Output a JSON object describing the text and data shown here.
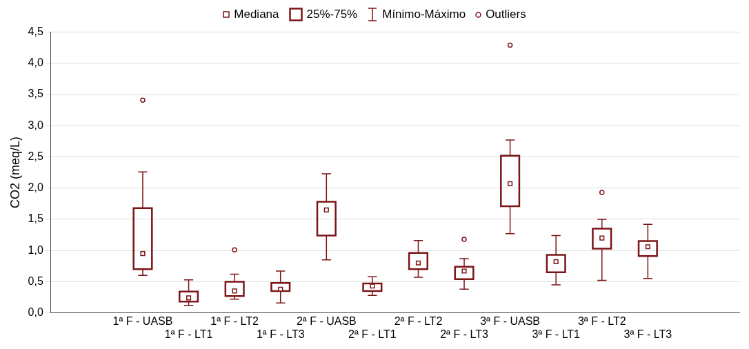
{
  "chart_data": {
    "type": "box",
    "ylabel": "CO2 (meq/L)",
    "color": "#7b1416",
    "grid": "y",
    "marker": "square",
    "annotations": [
      "Mediana",
      "25%-75%",
      "Mínimo-Máximo",
      "Outliers"
    ],
    "categories": [
      "1ª F - UASB",
      "1ª F - LT1",
      "1ª F - LT2",
      "1ª F - LT3",
      "2ª F - UASB",
      "2ª F - LT1",
      "2ª F - LT2",
      "2ª F - LT3",
      "3ª F - UASB",
      "3ª F - LT1",
      "3ª F - LT2",
      "3ª F - LT3"
    ],
    "boxes": [
      {
        "low": 0.6,
        "q1": 0.7,
        "median": 0.95,
        "q3": 1.68,
        "high": 2.26,
        "outliers": [
          3.41
        ]
      },
      {
        "low": 0.12,
        "q1": 0.18,
        "median": 0.24,
        "q3": 0.34,
        "high": 0.53
      },
      {
        "low": 0.22,
        "q1": 0.27,
        "median": 0.35,
        "q3": 0.5,
        "high": 0.62,
        "outliers": [
          1.01
        ]
      },
      {
        "low": 0.16,
        "q1": 0.35,
        "median": 0.38,
        "q3": 0.48,
        "high": 0.67
      },
      {
        "low": 0.85,
        "q1": 1.24,
        "median": 1.65,
        "q3": 1.78,
        "high": 2.23
      },
      {
        "low": 0.28,
        "q1": 0.35,
        "median": 0.43,
        "q3": 0.47,
        "high": 0.58
      },
      {
        "low": 0.57,
        "q1": 0.7,
        "median": 0.8,
        "q3": 0.96,
        "high": 1.16
      },
      {
        "low": 0.38,
        "q1": 0.54,
        "median": 0.67,
        "q3": 0.74,
        "high": 0.87,
        "outliers": [
          1.18
        ]
      },
      {
        "low": 1.27,
        "q1": 1.71,
        "median": 2.07,
        "q3": 2.52,
        "high": 2.77,
        "outliers": [
          4.29
        ]
      },
      {
        "low": 0.45,
        "q1": 0.65,
        "median": 0.82,
        "q3": 0.93,
        "high": 1.24
      },
      {
        "low": 0.52,
        "q1": 1.03,
        "median": 1.2,
        "q3": 1.35,
        "high": 1.5,
        "outliers": [
          1.93
        ]
      },
      {
        "low": 0.55,
        "q1": 0.91,
        "median": 1.06,
        "q3": 1.15,
        "high": 1.42
      }
    ],
    "ylim": [
      0,
      4.5
    ],
    "yticks": [
      {
        "value": 0,
        "label": "0,0"
      },
      {
        "value": 0.5,
        "label": "0,5"
      },
      {
        "value": 1,
        "label": "1,0"
      },
      {
        "value": 1.5,
        "label": "1,5"
      },
      {
        "value": 2,
        "label": "2,0"
      },
      {
        "value": 2.5,
        "label": "2,5"
      },
      {
        "value": 3,
        "label": "3,0"
      },
      {
        "value": 3.5,
        "label": "3,5"
      },
      {
        "value": 4,
        "label": "4,0"
      },
      {
        "value": 4.5,
        "label": "4,5"
      }
    ]
  }
}
